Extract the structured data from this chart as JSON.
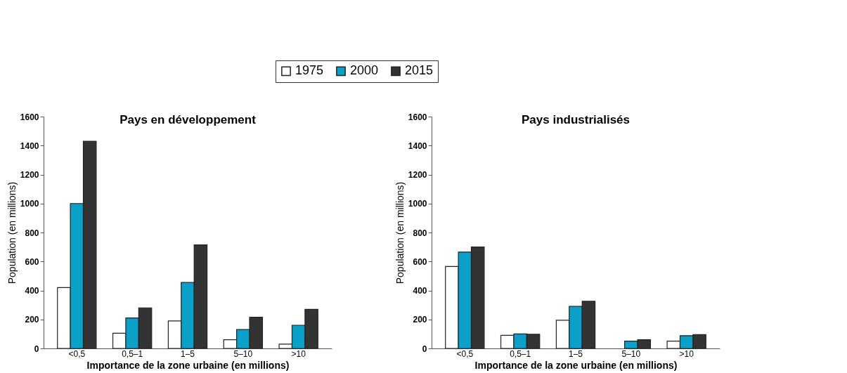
{
  "chart_data": [
    {
      "type": "bar",
      "title": "Pays en développement",
      "xlabel": "Importance de la zone urbaine (en millions)",
      "ylabel": "Population (en millions)",
      "categories": [
        "<0,5",
        "0,5–1",
        "1–5",
        "5–10",
        ">10"
      ],
      "series": [
        {
          "name": "1975",
          "color": "#ffffff",
          "values": [
            420,
            105,
            190,
            60,
            30
          ]
        },
        {
          "name": "2000",
          "color": "#0aa0c8",
          "values": [
            1000,
            210,
            455,
            130,
            160
          ]
        },
        {
          "name": "2015",
          "color": "#333333",
          "values": [
            1430,
            280,
            715,
            215,
            270
          ]
        }
      ],
      "ylim": [
        0,
        1600
      ],
      "yticks": [
        0,
        200,
        400,
        600,
        800,
        1000,
        1200,
        1400,
        1600
      ],
      "grid": false,
      "legend": "top"
    },
    {
      "type": "bar",
      "title": "Pays industrialisés",
      "xlabel": "Importance de la zone urbaine (en millions)",
      "ylabel": "Population (en millions)",
      "categories": [
        "<0,5",
        "0,5–1",
        "1–5",
        "5–10",
        ">10"
      ],
      "series": [
        {
          "name": "1975",
          "color": "#ffffff",
          "values": [
            565,
            90,
            195,
            null,
            50
          ]
        },
        {
          "name": "2000",
          "color": "#0aa0c8",
          "values": [
            665,
            100,
            290,
            50,
            88
          ]
        },
        {
          "name": "2015",
          "color": "#333333",
          "values": [
            700,
            98,
            325,
            60,
            95
          ]
        }
      ],
      "ylim": [
        0,
        1600
      ],
      "yticks": [
        0,
        200,
        400,
        600,
        800,
        1000,
        1200,
        1400,
        1600
      ],
      "grid": false,
      "legend": "top"
    }
  ]
}
